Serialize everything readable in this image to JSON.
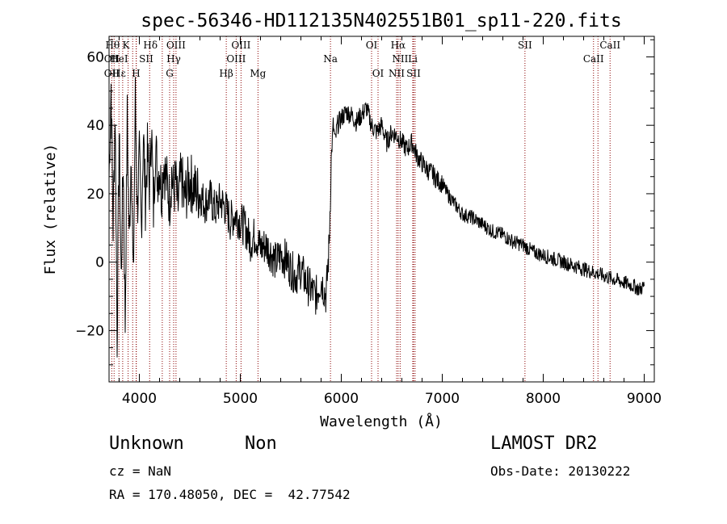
{
  "chart_data": {
    "type": "line",
    "title": "spec-56346-HD112135N402551B01_sp11-220.fits",
    "xlabel": "Wavelength (Å)",
    "ylabel": "Flux (relative)",
    "xlim": [
      3700,
      9100
    ],
    "ylim": [
      -35,
      66
    ],
    "xticks": [
      4000,
      5000,
      6000,
      7000,
      8000,
      9000
    ],
    "yticks": [
      -20,
      0,
      20,
      40,
      60
    ],
    "series": [
      {
        "x": [
          3700,
          3720,
          3740,
          3760,
          3780,
          3800,
          3820,
          3840,
          3860,
          3880,
          3900,
          3920,
          3940,
          3960,
          3980,
          4000,
          4020,
          4040,
          4060,
          4080,
          4100,
          4120,
          4140,
          4160,
          4180,
          4200,
          4220,
          4240,
          4260,
          4280,
          4300,
          4320,
          4340,
          4360,
          4380,
          4400,
          4420,
          4440,
          4460,
          4480,
          4500,
          4550,
          4600,
          4650,
          4700,
          4750,
          4800,
          4850,
          4900,
          4950,
          5000,
          5050,
          5100,
          5150,
          5200,
          5250,
          5300,
          5350,
          5400,
          5450,
          5500,
          5550,
          5600,
          5650,
          5700,
          5750,
          5800,
          5850,
          5880,
          5900,
          5920,
          5940,
          5960,
          6000,
          6050,
          6100,
          6150,
          6200,
          6250,
          6300,
          6350,
          6400,
          6450,
          6500,
          6550,
          6600,
          6650,
          6700,
          6750,
          6800,
          6850,
          6900,
          6950,
          7000,
          7050,
          7100,
          7150,
          7200,
          7300,
          7400,
          7500,
          7600,
          7700,
          7800,
          7900,
          8000,
          8100,
          8200,
          8300,
          8400,
          8500,
          8600,
          8700,
          8800,
          8900,
          8950,
          9000
        ],
        "y": [
          25,
          52,
          10,
          45,
          -22,
          38,
          -5,
          30,
          -18,
          42,
          5,
          35,
          -8,
          48,
          15,
          30,
          10,
          38,
          18,
          32,
          22,
          40,
          15,
          35,
          25,
          28,
          20,
          30,
          25,
          22,
          18,
          26,
          20,
          24,
          15,
          22,
          25,
          18,
          20,
          22,
          24,
          21,
          20,
          17,
          19,
          15,
          18,
          16,
          12,
          14,
          12,
          10,
          6,
          8,
          4,
          5,
          3,
          0,
          2,
          1,
          -2,
          -4,
          -2,
          -6,
          -8,
          -10,
          -5,
          -10,
          5,
          30,
          40,
          35,
          40,
          42,
          44,
          43,
          41,
          43,
          45,
          40,
          38,
          40,
          35,
          38,
          37,
          35,
          33,
          35,
          31,
          29,
          27,
          26,
          24,
          23,
          20,
          18,
          16,
          14,
          13,
          11,
          9,
          8,
          6,
          5,
          3,
          2,
          1,
          0,
          -1,
          -2,
          -3,
          -4,
          -5,
          -6,
          -7,
          -8,
          -7
        ]
      }
    ],
    "lines": {
      "dotted_x": [
        3727,
        3750,
        3798,
        3835,
        3889,
        3934,
        3968,
        3970,
        4102,
        4227,
        4300,
        4340,
        4363,
        4861,
        4959,
        5007,
        5175,
        5893,
        6300,
        6364,
        6548,
        6563,
        6583,
        6708,
        6716,
        6731,
        7819,
        8498,
        8542,
        8662
      ],
      "labels": [
        {
          "text": "Hθ",
          "x": 3735,
          "row": 0
        },
        {
          "text": "K",
          "x": 3868,
          "row": 0
        },
        {
          "text": "Hδ",
          "x": 4110,
          "row": 0
        },
        {
          "text": "OIII",
          "x": 4363,
          "row": 0
        },
        {
          "text": "OIII",
          "x": 5007,
          "row": 0
        },
        {
          "text": "OI",
          "x": 6300,
          "row": 0
        },
        {
          "text": "Hα",
          "x": 6563,
          "row": 0
        },
        {
          "text": "SII",
          "x": 7819,
          "row": 0
        },
        {
          "text": "CaII",
          "x": 8662,
          "row": 0
        },
        {
          "text": "OII",
          "x": 3727,
          "row": 1
        },
        {
          "text": "HeI",
          "x": 3800,
          "row": 1
        },
        {
          "text": "SII",
          "x": 4068,
          "row": 1
        },
        {
          "text": "Hγ",
          "x": 4340,
          "row": 1
        },
        {
          "text": "OIII",
          "x": 4959,
          "row": 1
        },
        {
          "text": "Na",
          "x": 5893,
          "row": 1
        },
        {
          "text": "NII",
          "x": 6583,
          "row": 1
        },
        {
          "text": "Li",
          "x": 6708,
          "row": 1
        },
        {
          "text": "CaII",
          "x": 8498,
          "row": 1
        },
        {
          "text": "OII",
          "x": 3727,
          "row": 2
        },
        {
          "text": "Hε",
          "x": 3800,
          "row": 2
        },
        {
          "text": "H",
          "x": 3968,
          "row": 2
        },
        {
          "text": "G",
          "x": 4300,
          "row": 2
        },
        {
          "text": "Hβ",
          "x": 4861,
          "row": 2
        },
        {
          "text": "Mg",
          "x": 5175,
          "row": 2
        },
        {
          "text": "OI",
          "x": 6364,
          "row": 2
        },
        {
          "text": "NII",
          "x": 6548,
          "row": 2
        },
        {
          "text": "SII",
          "x": 6716,
          "row": 2
        }
      ]
    },
    "line_color": "#8b0000",
    "grid": false
  },
  "info": {
    "class": "Unknown",
    "subclass": "Non",
    "survey": "LAMOST DR2",
    "cz": "cz = NaN",
    "obs_date": "Obs-Date: 20130222",
    "coords": "RA = 170.48050, DEC =  42.77542"
  }
}
